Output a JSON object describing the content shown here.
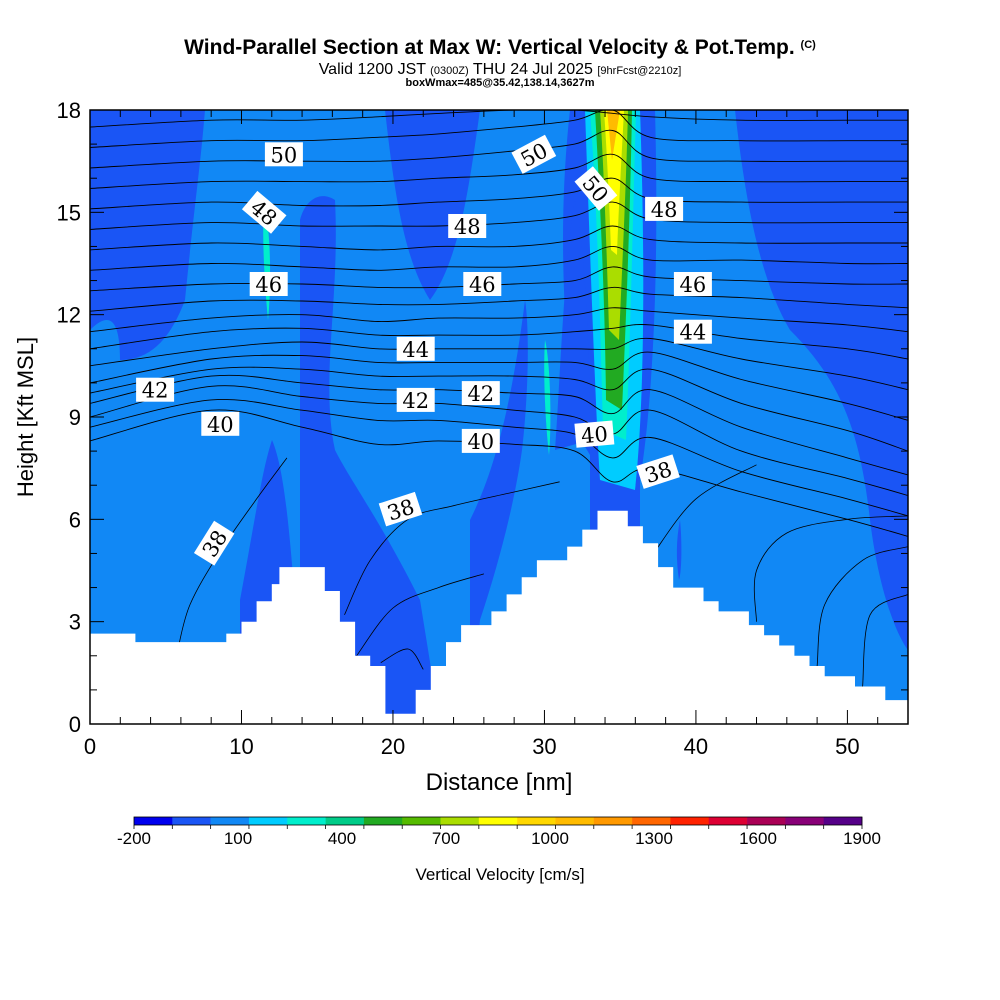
{
  "header": {
    "title": "Wind-Parallel Section at Max W: Vertical Velocity & Pot.Temp.",
    "copyright": "(C)",
    "valid_prefix": "Valid 1200 JST",
    "valid_utc": "(0300Z)",
    "valid_date": "THU 24 Jul 2025",
    "forecast": "[9hrFcst@2210z]",
    "boxmax": "boxWmax=485@35.42,138.14,3627m"
  },
  "chart_data": {
    "type": "heatmap",
    "xlabel": "Distance [nm]",
    "ylabel": "Height [Kft MSL]",
    "xlim": [
      0,
      54
    ],
    "ylim": [
      0,
      18
    ],
    "x_ticks": [
      0,
      10,
      20,
      30,
      40,
      50
    ],
    "y_ticks": [
      0,
      3,
      6,
      9,
      12,
      15,
      18
    ],
    "colorbar": {
      "label": "Vertical Velocity [cm/s]",
      "tick_labels": [
        "-200",
        "100",
        "400",
        "700",
        "1000",
        "1300",
        "1600",
        "1900"
      ],
      "colors": [
        "#0000ee",
        "#1a55f5",
        "#1188f5",
        "#00ccff",
        "#00eecc",
        "#00cc88",
        "#22aa22",
        "#55bb00",
        "#aadd00",
        "#ffff00",
        "#ffd700",
        "#ffbb00",
        "#ff9900",
        "#ff6600",
        "#ff2200",
        "#dd0033",
        "#aa0055",
        "#880077",
        "#550088"
      ]
    },
    "terrain_kft": [
      [
        0,
        2.65
      ],
      [
        3,
        2.65
      ],
      [
        3,
        2.4
      ],
      [
        9,
        2.4
      ],
      [
        9,
        2.65
      ],
      [
        10,
        2.65
      ],
      [
        10,
        3.0
      ],
      [
        11,
        3.0
      ],
      [
        11,
        3.6
      ],
      [
        12,
        3.6
      ],
      [
        12,
        4.1
      ],
      [
        12.5,
        4.1
      ],
      [
        12.5,
        4.6
      ],
      [
        15.5,
        4.6
      ],
      [
        15.5,
        3.9
      ],
      [
        16.5,
        3.9
      ],
      [
        16.5,
        3.0
      ],
      [
        17.5,
        3.0
      ],
      [
        17.5,
        2.0
      ],
      [
        18.5,
        2.0
      ],
      [
        18.5,
        1.7
      ],
      [
        19.5,
        1.7
      ],
      [
        19.5,
        0.3
      ],
      [
        21.5,
        0.3
      ],
      [
        21.5,
        1.0
      ],
      [
        22.5,
        1.0
      ],
      [
        22.5,
        1.7
      ],
      [
        23.5,
        1.7
      ],
      [
        23.5,
        2.4
      ],
      [
        24.5,
        2.4
      ],
      [
        24.5,
        2.9
      ],
      [
        26.5,
        2.9
      ],
      [
        26.5,
        3.3
      ],
      [
        27.5,
        3.3
      ],
      [
        27.5,
        3.8
      ],
      [
        28.5,
        3.8
      ],
      [
        28.5,
        4.3
      ],
      [
        29.5,
        4.3
      ],
      [
        29.5,
        4.8
      ],
      [
        31.5,
        4.8
      ],
      [
        31.5,
        5.2
      ],
      [
        32.5,
        5.2
      ],
      [
        32.5,
        5.7
      ],
      [
        33.5,
        5.7
      ],
      [
        33.5,
        6.25
      ],
      [
        35.5,
        6.25
      ],
      [
        35.5,
        5.8
      ],
      [
        36.5,
        5.8
      ],
      [
        36.5,
        5.3
      ],
      [
        37.5,
        5.3
      ],
      [
        37.5,
        4.6
      ],
      [
        38.5,
        4.6
      ],
      [
        38.5,
        4.0
      ],
      [
        40.5,
        4.0
      ],
      [
        40.5,
        3.6
      ],
      [
        41.5,
        3.6
      ],
      [
        41.5,
        3.3
      ],
      [
        43.5,
        3.3
      ],
      [
        43.5,
        2.9
      ],
      [
        44.5,
        2.9
      ],
      [
        44.5,
        2.6
      ],
      [
        45.5,
        2.6
      ],
      [
        45.5,
        2.3
      ],
      [
        46.5,
        2.3
      ],
      [
        46.5,
        2.0
      ],
      [
        47.5,
        2.0
      ],
      [
        47.5,
        1.7
      ],
      [
        48.5,
        1.7
      ],
      [
        48.5,
        1.4
      ],
      [
        50.5,
        1.4
      ],
      [
        50.5,
        1.1
      ],
      [
        52.5,
        1.1
      ],
      [
        52.5,
        0.7
      ],
      [
        54,
        0.7
      ]
    ],
    "pot_temp_labels": [
      {
        "text": "38",
        "x": 8.2,
        "y": 5.3,
        "angle": -58
      },
      {
        "text": "38",
        "x": 20.5,
        "y": 6.3,
        "angle": -18
      },
      {
        "text": "38",
        "x": 37.5,
        "y": 7.4,
        "angle": -18
      },
      {
        "text": "40",
        "x": 8.6,
        "y": 8.8,
        "angle": 0
      },
      {
        "text": "40",
        "x": 25.8,
        "y": 8.3,
        "angle": 0
      },
      {
        "text": "40",
        "x": 33.3,
        "y": 8.5,
        "angle": -5
      },
      {
        "text": "42",
        "x": 4.3,
        "y": 9.8,
        "angle": 0
      },
      {
        "text": "42",
        "x": 21.5,
        "y": 9.5,
        "angle": 0
      },
      {
        "text": "42",
        "x": 25.8,
        "y": 9.7,
        "angle": 0
      },
      {
        "text": "44",
        "x": 21.5,
        "y": 11.0,
        "angle": 0
      },
      {
        "text": "44",
        "x": 39.8,
        "y": 11.5,
        "angle": 0
      },
      {
        "text": "46",
        "x": 11.8,
        "y": 12.9,
        "angle": 0
      },
      {
        "text": "46",
        "x": 25.9,
        "y": 12.9,
        "angle": 0
      },
      {
        "text": "46",
        "x": 39.8,
        "y": 12.9,
        "angle": 0
      },
      {
        "text": "48",
        "x": 11.5,
        "y": 15.0,
        "angle": 40
      },
      {
        "text": "48",
        "x": 24.9,
        "y": 14.6,
        "angle": 0
      },
      {
        "text": "48",
        "x": 37.9,
        "y": 15.1,
        "angle": 0
      },
      {
        "text": "50",
        "x": 12.8,
        "y": 16.7,
        "angle": 0
      },
      {
        "text": "50",
        "x": 29.3,
        "y": 16.7,
        "angle": -28
      },
      {
        "text": "50",
        "x": 33.4,
        "y": 15.7,
        "angle": 50
      }
    ],
    "isentropes_kft": [
      [
        [
          0,
          8.3
        ],
        [
          8,
          9.2
        ],
        [
          14,
          8.7
        ],
        [
          19,
          8.2
        ],
        [
          23,
          8.3
        ],
        [
          28,
          8.2
        ],
        [
          32,
          8.0
        ],
        [
          34.5,
          7.1
        ],
        [
          37,
          7.5
        ],
        [
          43,
          6.8
        ],
        [
          50,
          6.0
        ],
        [
          54,
          5.5
        ]
      ],
      [
        [
          0,
          8.7
        ],
        [
          8,
          9.5
        ],
        [
          14,
          9.2
        ],
        [
          19,
          8.9
        ],
        [
          23,
          8.9
        ],
        [
          28,
          8.7
        ],
        [
          32,
          8.5
        ],
        [
          34.5,
          7.8
        ],
        [
          37,
          8.4
        ],
        [
          43,
          7.4
        ],
        [
          50,
          6.6
        ],
        [
          54,
          6.1
        ]
      ],
      [
        [
          0,
          9.0
        ],
        [
          8,
          9.9
        ],
        [
          14,
          9.6
        ],
        [
          19,
          9.4
        ],
        [
          23,
          9.4
        ],
        [
          28,
          9.2
        ],
        [
          32,
          9.0
        ],
        [
          34.5,
          8.5
        ],
        [
          37,
          9.2
        ],
        [
          43,
          8.0
        ],
        [
          50,
          7.2
        ],
        [
          54,
          6.7
        ]
      ],
      [
        [
          0,
          9.4
        ],
        [
          8,
          10.2
        ],
        [
          14,
          10.0
        ],
        [
          19,
          9.8
        ],
        [
          23,
          9.8
        ],
        [
          28,
          9.7
        ],
        [
          32,
          9.6
        ],
        [
          34.5,
          9.1
        ],
        [
          37,
          9.8
        ],
        [
          43,
          8.7
        ],
        [
          50,
          7.8
        ],
        [
          54,
          7.3
        ]
      ],
      [
        [
          0,
          9.7
        ],
        [
          8,
          10.4
        ],
        [
          14,
          10.4
        ],
        [
          19,
          10.2
        ],
        [
          23,
          10.2
        ],
        [
          28,
          10.2
        ],
        [
          32,
          10.1
        ],
        [
          34.5,
          9.8
        ],
        [
          37,
          10.4
        ],
        [
          43,
          9.4
        ],
        [
          50,
          8.6
        ],
        [
          54,
          8.0
        ]
      ],
      [
        [
          0,
          10.0
        ],
        [
          8,
          10.7
        ],
        [
          14,
          10.8
        ],
        [
          19,
          10.6
        ],
        [
          23,
          10.6
        ],
        [
          28,
          10.6
        ],
        [
          32,
          10.6
        ],
        [
          34.5,
          10.4
        ],
        [
          37,
          10.9
        ],
        [
          43,
          10.1
        ],
        [
          50,
          9.4
        ],
        [
          54,
          8.9
        ]
      ],
      [
        [
          0,
          10.5
        ],
        [
          8,
          11.0
        ],
        [
          14,
          11.2
        ],
        [
          19,
          11.0
        ],
        [
          23,
          11.0
        ],
        [
          28,
          11.0
        ],
        [
          32,
          11.0
        ],
        [
          34.5,
          11.0
        ],
        [
          37,
          11.3
        ],
        [
          43,
          10.7
        ],
        [
          50,
          10.2
        ],
        [
          54,
          9.8
        ]
      ],
      [
        [
          0,
          11.0
        ],
        [
          8,
          11.5
        ],
        [
          14,
          11.6
        ],
        [
          19,
          11.4
        ],
        [
          23,
          11.4
        ],
        [
          28,
          11.4
        ],
        [
          32,
          11.5
        ],
        [
          34.5,
          11.6
        ],
        [
          37,
          11.7
        ],
        [
          43,
          11.3
        ],
        [
          50,
          11.0
        ],
        [
          54,
          10.7
        ]
      ],
      [
        [
          0,
          11.5
        ],
        [
          8,
          11.9
        ],
        [
          14,
          12.0
        ],
        [
          19,
          11.8
        ],
        [
          23,
          11.9
        ],
        [
          28,
          11.9
        ],
        [
          32,
          12.0
        ],
        [
          34.5,
          12.2
        ],
        [
          37,
          12.1
        ],
        [
          43,
          11.9
        ],
        [
          50,
          11.7
        ],
        [
          54,
          11.5
        ]
      ],
      [
        [
          0,
          12.1
        ],
        [
          8,
          12.4
        ],
        [
          14,
          12.4
        ],
        [
          19,
          12.3
        ],
        [
          23,
          12.3
        ],
        [
          28,
          12.4
        ],
        [
          32,
          12.5
        ],
        [
          34.5,
          12.8
        ],
        [
          37,
          12.6
        ],
        [
          43,
          12.5
        ],
        [
          50,
          12.3
        ],
        [
          54,
          12.2
        ]
      ],
      [
        [
          0,
          12.7
        ],
        [
          8,
          12.9
        ],
        [
          14,
          12.9
        ],
        [
          19,
          12.8
        ],
        [
          23,
          12.8
        ],
        [
          28,
          12.9
        ],
        [
          32,
          13.0
        ],
        [
          34.5,
          13.4
        ],
        [
          37,
          13.1
        ],
        [
          43,
          13.0
        ],
        [
          50,
          12.9
        ],
        [
          54,
          12.9
        ]
      ],
      [
        [
          0,
          13.3
        ],
        [
          8,
          13.5
        ],
        [
          14,
          13.4
        ],
        [
          19,
          13.3
        ],
        [
          23,
          13.4
        ],
        [
          28,
          13.4
        ],
        [
          32,
          13.6
        ],
        [
          34.5,
          14.0
        ],
        [
          37,
          13.6
        ],
        [
          43,
          13.6
        ],
        [
          50,
          13.5
        ],
        [
          54,
          13.5
        ]
      ],
      [
        [
          0,
          13.9
        ],
        [
          8,
          14.1
        ],
        [
          14,
          14.0
        ],
        [
          19,
          13.9
        ],
        [
          23,
          14.0
        ],
        [
          28,
          14.0
        ],
        [
          32,
          14.2
        ],
        [
          34.5,
          14.6
        ],
        [
          37,
          14.2
        ],
        [
          43,
          14.1
        ],
        [
          50,
          14.1
        ],
        [
          54,
          14.1
        ]
      ],
      [
        [
          0,
          14.5
        ],
        [
          8,
          14.7
        ],
        [
          14,
          14.6
        ],
        [
          19,
          14.6
        ],
        [
          23,
          14.6
        ],
        [
          28,
          14.7
        ],
        [
          32,
          14.9
        ],
        [
          34.5,
          15.3
        ],
        [
          37,
          14.8
        ],
        [
          43,
          14.7
        ],
        [
          50,
          14.7
        ],
        [
          54,
          14.7
        ]
      ],
      [
        [
          0,
          15.1
        ],
        [
          8,
          15.3
        ],
        [
          14,
          15.2
        ],
        [
          19,
          15.2
        ],
        [
          23,
          15.3
        ],
        [
          28,
          15.4
        ],
        [
          32,
          15.6
        ],
        [
          34.5,
          16.0
        ],
        [
          37,
          15.4
        ],
        [
          43,
          15.3
        ],
        [
          50,
          15.3
        ],
        [
          54,
          15.3
        ]
      ],
      [
        [
          0,
          15.7
        ],
        [
          8,
          15.9
        ],
        [
          14,
          15.9
        ],
        [
          19,
          15.9
        ],
        [
          23,
          16.0
        ],
        [
          28,
          16.1
        ],
        [
          32,
          16.3
        ],
        [
          34.5,
          16.7
        ],
        [
          37,
          16.0
        ],
        [
          43,
          15.9
        ],
        [
          50,
          15.9
        ],
        [
          54,
          15.9
        ]
      ],
      [
        [
          0,
          16.3
        ],
        [
          8,
          16.5
        ],
        [
          14,
          16.5
        ],
        [
          19,
          16.5
        ],
        [
          23,
          16.6
        ],
        [
          28,
          16.8
        ],
        [
          32,
          17.0
        ],
        [
          34.5,
          17.4
        ],
        [
          37,
          16.6
        ],
        [
          43,
          16.5
        ],
        [
          50,
          16.5
        ],
        [
          54,
          16.5
        ]
      ],
      [
        [
          0,
          16.9
        ],
        [
          8,
          17.1
        ],
        [
          14,
          17.1
        ],
        [
          19,
          17.2
        ],
        [
          23,
          17.3
        ],
        [
          28,
          17.5
        ],
        [
          32,
          17.7
        ],
        [
          34.5,
          18.0
        ],
        [
          37,
          17.2
        ],
        [
          43,
          17.1
        ],
        [
          50,
          17.1
        ],
        [
          54,
          17.1
        ]
      ],
      [
        [
          0,
          17.5
        ],
        [
          8,
          17.7
        ],
        [
          14,
          17.7
        ],
        [
          19,
          17.8
        ],
        [
          23,
          17.9
        ],
        [
          28,
          18.0
        ],
        [
          32,
          18.0
        ],
        [
          37,
          17.8
        ],
        [
          43,
          17.7
        ],
        [
          50,
          17.7
        ],
        [
          54,
          17.7
        ]
      ]
    ],
    "low_level_contours_kft": [
      [
        [
          5.8,
          2.2
        ],
        [
          6.6,
          3.5
        ],
        [
          8.5,
          5.0
        ],
        [
          11,
          6.6
        ],
        [
          13,
          7.8
        ]
      ],
      [
        [
          16.8,
          3.2
        ],
        [
          18.5,
          4.8
        ],
        [
          21,
          6.0
        ],
        [
          24,
          6.4
        ],
        [
          28,
          6.8
        ],
        [
          31,
          7.1
        ]
      ],
      [
        [
          17.6,
          2.0
        ],
        [
          20,
          3.4
        ],
        [
          23,
          4.0
        ],
        [
          26,
          4.4
        ]
      ],
      [
        [
          19.2,
          1.8
        ],
        [
          21,
          2.2
        ],
        [
          22,
          1.6
        ]
      ],
      [
        [
          37.2,
          5.0
        ],
        [
          40,
          6.6
        ],
        [
          44,
          7.6
        ]
      ],
      [
        [
          44,
          3.0
        ],
        [
          44,
          4.5
        ],
        [
          46,
          5.6
        ],
        [
          50,
          6.0
        ],
        [
          54,
          6.1
        ]
      ],
      [
        [
          48,
          1.7
        ],
        [
          48.5,
          3.5
        ],
        [
          51,
          4.8
        ],
        [
          54,
          5.2
        ]
      ],
      [
        [
          51,
          1.1
        ],
        [
          51.5,
          3.2
        ],
        [
          54,
          3.8
        ]
      ]
    ]
  }
}
